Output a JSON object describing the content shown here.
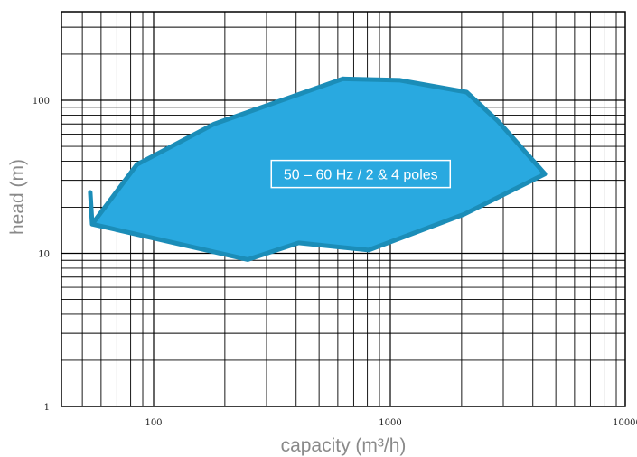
{
  "chart_data": {
    "type": "area",
    "xlabel": "capacity (m³/h)",
    "ylabel": "head (m)",
    "xscale": "log",
    "yscale": "log",
    "xlim": [
      40,
      10000
    ],
    "ylim": [
      1,
      400
    ],
    "x_ticks": [
      100,
      1000,
      10000
    ],
    "x_tick_labels": [
      "100",
      "1000",
      "10000"
    ],
    "y_ticks": [
      1,
      10,
      100
    ],
    "y_tick_labels": [
      "1",
      "10",
      "100"
    ],
    "grid": true,
    "annotation": "50 – 60 Hz / 2 & 4 poles",
    "region": {
      "fill_color": "#29a9e0",
      "stroke_color": "#1b8db8",
      "x": [
        54,
        55,
        85,
        180,
        630,
        1100,
        2100,
        2850,
        4500,
        2050,
        810,
        410,
        250,
        55
      ],
      "y": [
        25,
        15.5,
        38,
        70,
        138,
        135,
        113,
        73,
        33,
        18,
        10.5,
        11.7,
        9.1,
        15.5
      ]
    },
    "annotation_anchor": {
      "x": 750,
      "y": 33
    }
  }
}
